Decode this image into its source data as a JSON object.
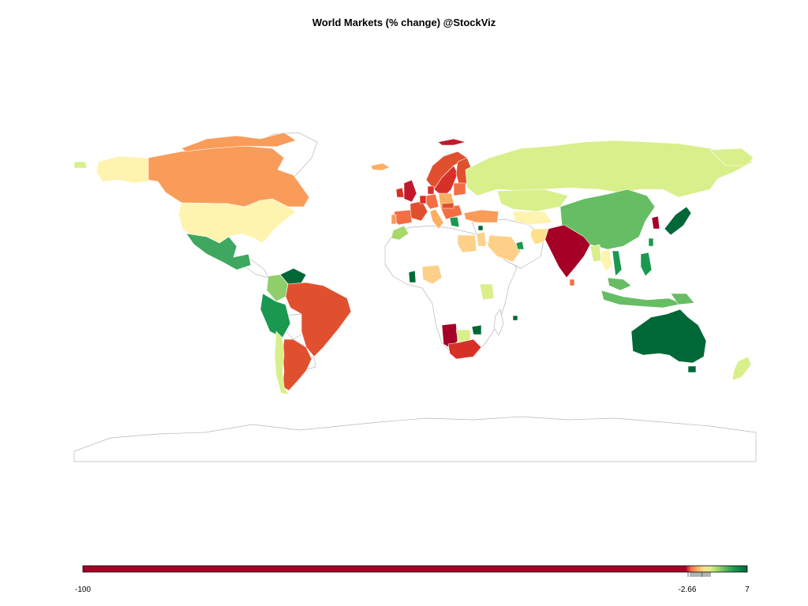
{
  "title": "World Markets (% change) @StockViz",
  "colors": {
    "deep_red": "#a50026",
    "red": "#d73027",
    "orange_red": "#e0502f",
    "orange": "#f46d43",
    "light_orange": "#fdae61",
    "pale_orange": "#fee08b",
    "pale_yellow": "#fff3b0",
    "yellow_green": "#d9ef8b",
    "light_green": "#a6d96a",
    "green": "#66bd63",
    "mid_green": "#1a9850",
    "dark_green": "#006837",
    "border": "#b0b0b0"
  },
  "legend": {
    "min_label": "-100",
    "mid_label": "-2.66",
    "max_label": "7",
    "min": -100,
    "mid": -2.66,
    "max": 7
  }
}
